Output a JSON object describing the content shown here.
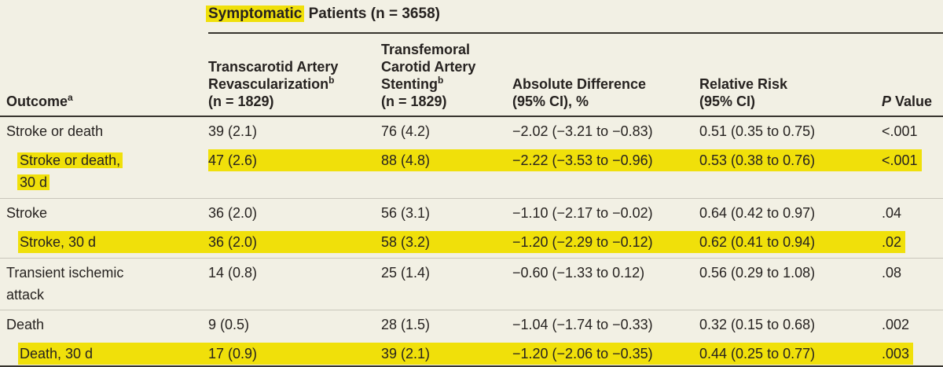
{
  "colors": {
    "background": "#f2f0e4",
    "highlight": "#f0e00a",
    "text": "#262220",
    "rule_dark": "#37342e",
    "rule_light": "#c9c6bb"
  },
  "table": {
    "spanner": {
      "highlighted": "Symptomatic",
      "rest": " Patients (n = 3658)"
    },
    "columns": [
      {
        "id": "outcome",
        "lines": [
          {
            "t": "Outcome",
            "sup": "a"
          }
        ]
      },
      {
        "id": "tcar",
        "lines": [
          {
            "t": "Transcarotid Artery"
          },
          {
            "t": "Revascularization",
            "sup": "b"
          },
          {
            "t": "(n = 1829)"
          }
        ]
      },
      {
        "id": "tfcas",
        "lines": [
          {
            "t": "Transfemoral"
          },
          {
            "t": "Carotid Artery"
          },
          {
            "t": "Stenting",
            "sup": "b"
          },
          {
            "t": "(n = 1829)"
          }
        ]
      },
      {
        "id": "abs-diff",
        "lines": [
          {
            "t": "Absolute Difference"
          },
          {
            "t": "(95% CI), %"
          }
        ]
      },
      {
        "id": "rel-risk",
        "lines": [
          {
            "t": "Relative Risk"
          },
          {
            "t": "(95% CI)"
          }
        ]
      },
      {
        "id": "p-value",
        "lines": [
          {
            "i": "P",
            "t": " Value"
          }
        ]
      }
    ],
    "rows": [
      {
        "outcome_lines": [
          "Stroke or death"
        ],
        "indent": false,
        "highlight": false,
        "separator": false,
        "values": [
          "39 (2.1)",
          "76 (4.2)",
          "−2.02 (−3.21 to −0.83)",
          "0.51 (0.35 to 0.75)",
          "<.001"
        ]
      },
      {
        "outcome_lines": [
          "Stroke or death,",
          "30 d"
        ],
        "indent": true,
        "highlight": true,
        "separator": false,
        "values": [
          "47 (2.6)",
          "88 (4.8)",
          "−2.22 (−3.53 to −0.96)",
          "0.53 (0.38 to 0.76)",
          "<.001"
        ]
      },
      {
        "outcome_lines": [
          "Stroke"
        ],
        "indent": false,
        "highlight": false,
        "separator": true,
        "values": [
          "36 (2.0)",
          "56 (3.1)",
          "−1.10 (−2.17 to −0.02)",
          "0.64 (0.42 to 0.97)",
          ".04"
        ]
      },
      {
        "outcome_lines": [
          "Stroke, 30 d"
        ],
        "indent": true,
        "highlight": true,
        "separator": false,
        "values": [
          "36 (2.0)",
          "58 (3.2)",
          "−1.20 (−2.29 to −0.12)",
          "0.62 (0.41 to 0.94)",
          ".02"
        ]
      },
      {
        "outcome_lines": [
          "Transient ischemic",
          "attack"
        ],
        "indent": false,
        "highlight": false,
        "separator": true,
        "values": [
          "14 (0.8)",
          "25 (1.4)",
          "−0.60 (−1.33 to 0.12)",
          "0.56 (0.29 to 1.08)",
          ".08"
        ]
      },
      {
        "outcome_lines": [
          "Death"
        ],
        "indent": false,
        "highlight": false,
        "separator": true,
        "values": [
          "9 (0.5)",
          "28 (1.5)",
          "−1.04 (−1.74 to −0.33)",
          "0.32 (0.15 to 0.68)",
          ".002"
        ]
      },
      {
        "outcome_lines": [
          "Death, 30 d"
        ],
        "indent": true,
        "highlight": true,
        "separator": false,
        "values": [
          "17 (0.9)",
          "39 (2.1)",
          "−1.20 (−2.06 to −0.35)",
          "0.44 (0.25 to 0.77)",
          ".003"
        ]
      }
    ]
  }
}
